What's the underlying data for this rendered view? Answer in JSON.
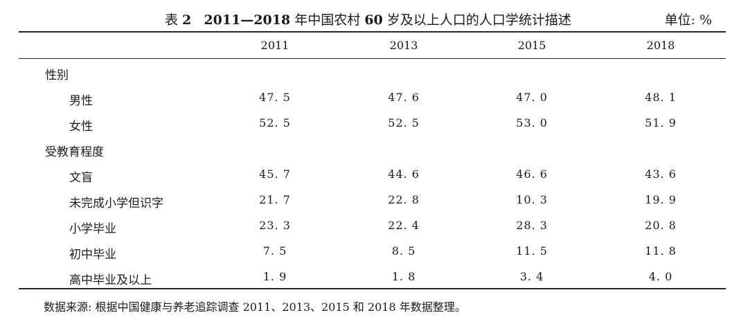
{
  "caption": {
    "prefix": "表 ",
    "number": "2",
    "years": "2011—2018",
    "mid": " 年中国农村 ",
    "age": "60",
    "suffix": " 岁及以上人口的人口学统计描述"
  },
  "unit": "单位: %",
  "columns": [
    "2011",
    "2013",
    "2015",
    "2018"
  ],
  "rows": [
    {
      "type": "group",
      "label": "性别",
      "values": [
        "",
        "",
        "",
        ""
      ]
    },
    {
      "type": "item",
      "label": "男性",
      "values": [
        "47. 5",
        "47. 6",
        "47. 0",
        "48. 1"
      ]
    },
    {
      "type": "item",
      "label": "女性",
      "values": [
        "52. 5",
        "52. 5",
        "53. 0",
        "51. 9"
      ]
    },
    {
      "type": "group",
      "label": "受教育程度",
      "values": [
        "",
        "",
        "",
        ""
      ]
    },
    {
      "type": "item",
      "label": "文盲",
      "values": [
        "45. 7",
        "44. 6",
        "46. 6",
        "43. 6"
      ]
    },
    {
      "type": "item",
      "label": "未完成小学但识字",
      "values": [
        "21. 7",
        "22. 8",
        "10. 3",
        "19. 9"
      ]
    },
    {
      "type": "item",
      "label": "小学毕业",
      "values": [
        "23. 3",
        "22. 4",
        "28. 3",
        "20. 8"
      ]
    },
    {
      "type": "item",
      "label": "初中毕业",
      "values": [
        "7. 5",
        "8. 5",
        "11. 5",
        "11. 8"
      ]
    },
    {
      "type": "item",
      "label": "高中毕业及以上",
      "values": [
        "1. 9",
        "1. 8",
        "3. 4",
        "4. 0"
      ]
    }
  ],
  "note": "数据来源: 根据中国健康与养老追踪调查 2011、2013、2015 和 2018 年数据整理。"
}
